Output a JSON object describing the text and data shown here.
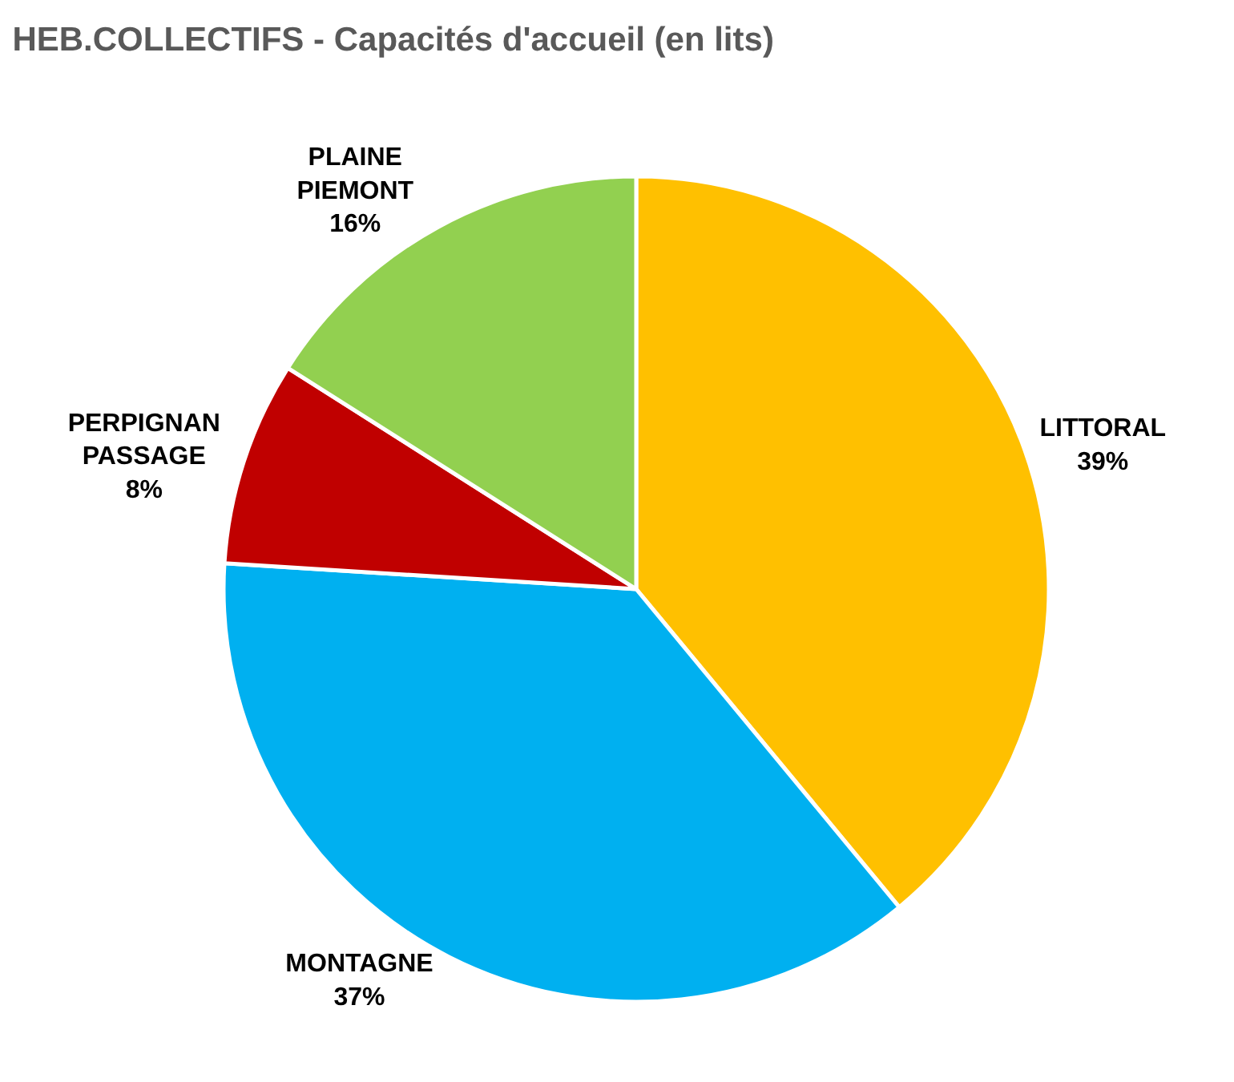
{
  "chart_data": {
    "type": "pie",
    "title": "HEB.COLLECTIFS - Capacités d'accueil (en lits)",
    "categories": [
      "LITTORAL",
      "MONTAGNE",
      "PERPIGNAN PASSAGE",
      "PLAINE PIEMONT"
    ],
    "values": [
      39,
      37,
      8,
      16
    ],
    "value_labels": [
      "39%",
      "37%",
      "8%",
      "16%"
    ],
    "colors": [
      "#ffc000",
      "#00b0f0",
      "#c00000",
      "#92d050"
    ],
    "legend": false
  }
}
